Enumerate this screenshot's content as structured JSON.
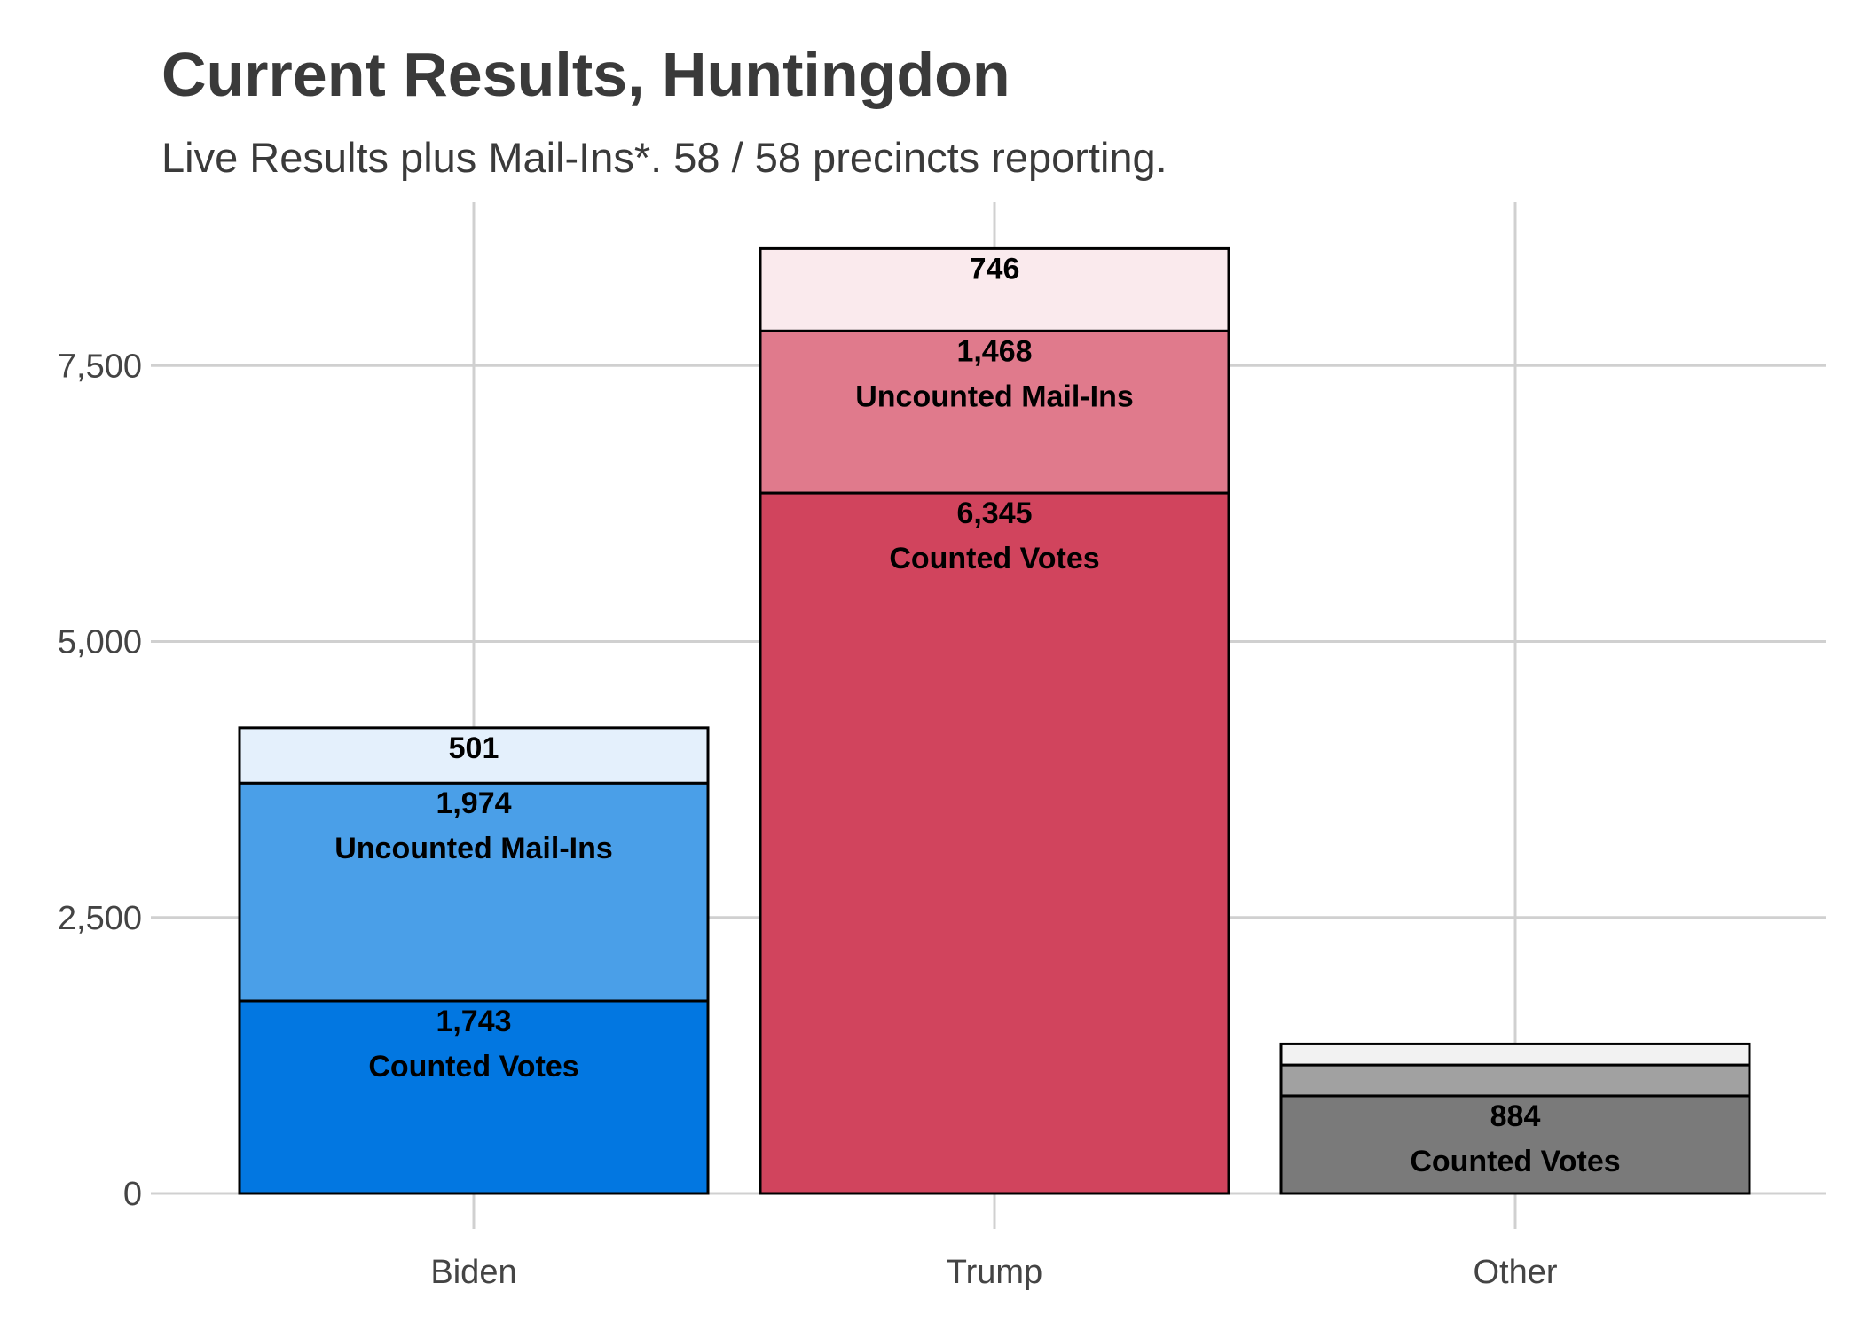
{
  "chart_data": {
    "type": "bar",
    "stacked": true,
    "title": "Current Results, Huntingdon",
    "subtitle": "Live Results plus Mail-Ins*. 58 / 58 precincts reporting.",
    "xlabel": "",
    "ylabel": "",
    "ylim": [
      0,
      8900
    ],
    "yticks": [
      0,
      2500,
      5000,
      7500
    ],
    "ytick_labels": [
      "0",
      "2,500",
      "5,000",
      "7,500"
    ],
    "grid": true,
    "categories": [
      "Biden",
      "Trump",
      "Other"
    ],
    "series": [
      {
        "values": [
          1743,
          6345,
          884
        ],
        "labels": [
          "1,743",
          "6,345",
          "884"
        ],
        "sublabel": "Counted Votes",
        "colors": [
          "#0277e1",
          "#d1445d",
          "#7a7a7a"
        ]
      },
      {
        "values": [
          1974,
          1468,
          280
        ],
        "labels": [
          "1,974",
          "1,468",
          ""
        ],
        "sublabel": "Uncounted Mail-Ins",
        "colors": [
          "#4a9fe8",
          "#e07a8c",
          "#a1a1a1"
        ]
      },
      {
        "values": [
          501,
          746,
          190
        ],
        "labels": [
          "501",
          "746",
          ""
        ],
        "sublabel": "",
        "colors": [
          "#e4f0fc",
          "#faeaed",
          "#f2f2f2"
        ]
      }
    ]
  }
}
